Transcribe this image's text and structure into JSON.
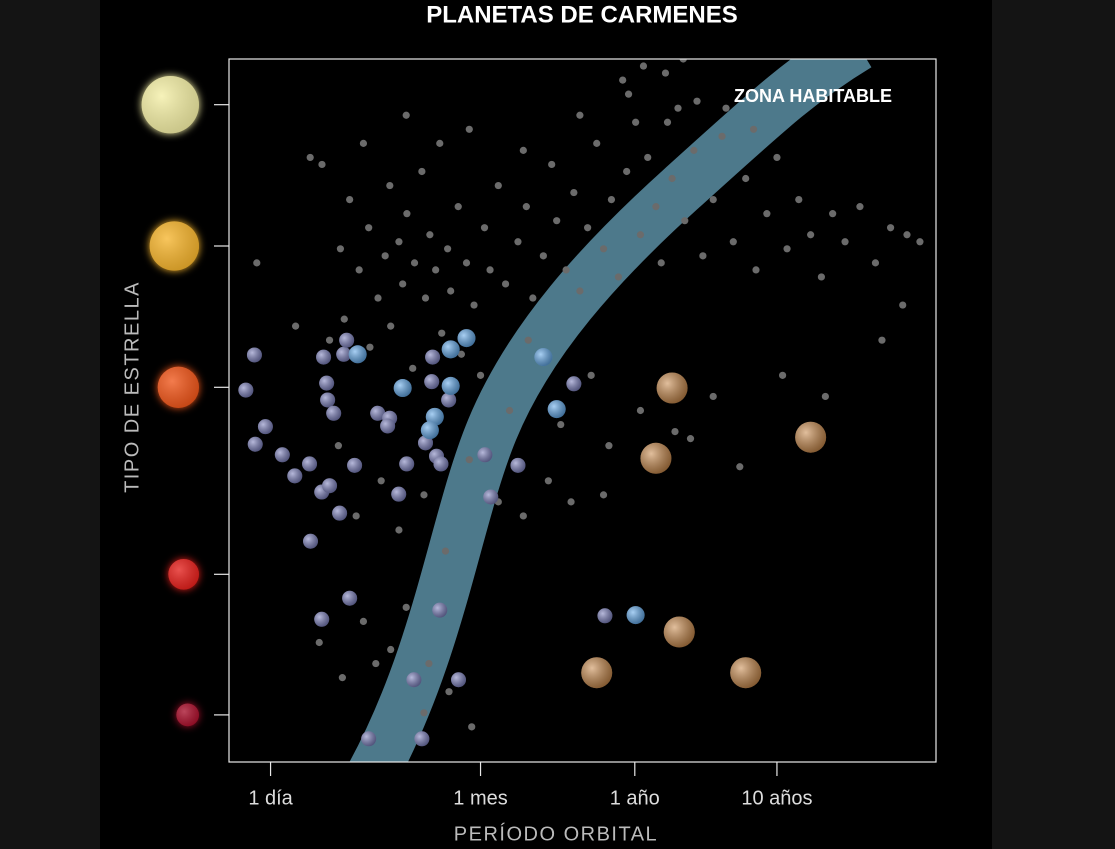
{
  "chart_data": {
    "type": "scatter",
    "title": "PLANETAS DE CARMENES",
    "xlabel": "PERÍODO ORBITAL",
    "ylabel": "TIPO DE ESTRELLA",
    "annotation": "ZONA HABITABLE",
    "xscale": "log",
    "xlim": [
      0.51,
      48000
    ],
    "xticks": [
      {
        "value": 1,
        "label": "1 día"
      },
      {
        "value": 30,
        "label": "1 mes"
      },
      {
        "value": 365,
        "label": "1 año"
      },
      {
        "value": 3650,
        "label": "10 años"
      }
    ],
    "ylim": [
      0,
      100
    ],
    "yticks": [
      93.5,
      73.4,
      53.3,
      26.7,
      6.7
    ],
    "ytick_colors": [
      "#f4efa6",
      "#f6b52e",
      "#f0561a",
      "#e4201c",
      "#a8102c"
    ],
    "series": [
      {
        "color": "#6b6b6b",
        "x": [
          3.1,
          3.6,
          4.2,
          4.9,
          5.7,
          6.4,
          6.9,
          8,
          8.5,
          9.1,
          10.3,
          11.6,
          12.3,
          13.2,
          14.5,
          15.5,
          17.6,
          18.5,
          20.9,
          23.9,
          27,
          32,
          35,
          40,
          45,
          55,
          63,
          70,
          83,
          95,
          103,
          120,
          136,
          150,
          170,
          197,
          220,
          250,
          280,
          320,
          370,
          400,
          450,
          514,
          560,
          668,
          735,
          820,
          950,
          1100,
          1300,
          1500,
          1800,
          2200,
          2600,
          3100,
          3650,
          4300,
          5200,
          6300,
          7500,
          9000,
          11000,
          14000,
          18000,
          23000,
          30000,
          37000,
          1.9,
          2.3,
          4.5,
          9,
          25,
          60,
          150,
          300,
          420,
          600,
          800,
          1000,
          1600,
          2500,
          330,
          620,
          0.8,
          1.5,
          2.6,
          3.3,
          5,
          7,
          10,
          16,
          22,
          30,
          48,
          65,
          110,
          180,
          240,
          400,
          700,
          900,
          1300,
          2000,
          4000,
          8000,
          20000,
          28000,
          3,
          4,
          6,
          8,
          12,
          17,
          25,
          40,
          60,
          90,
          130,
          220,
          4.5,
          7,
          9,
          13,
          2.2,
          3.2,
          5.5,
          12,
          18,
          26
        ],
        "values": [
          73,
          80,
          70,
          76,
          66,
          72,
          82,
          74,
          68,
          78,
          71,
          84,
          66,
          75,
          70,
          88,
          73,
          67,
          79,
          71,
          65,
          76,
          70,
          82,
          68,
          74,
          79,
          66,
          72,
          85,
          77,
          70,
          81,
          67,
          76,
          88,
          73,
          80,
          69,
          84,
          91,
          75,
          86,
          79,
          71,
          83,
          93,
          77,
          87,
          72,
          80,
          89,
          74,
          83,
          70,
          78,
          86,
          73,
          80,
          75,
          69,
          78,
          74,
          79,
          71,
          76,
          75,
          74,
          86,
          85,
          88,
          92,
          90,
          87,
          92,
          97,
          99,
          98,
          100,
          94,
          93,
          90,
          95,
          91,
          71,
          62,
          60,
          63,
          59,
          62,
          56,
          61,
          58,
          55,
          50,
          60,
          48,
          55,
          45,
          50,
          47,
          46,
          52,
          42,
          55,
          52,
          60,
          65,
          45,
          35,
          40,
          33,
          38,
          30,
          43,
          37,
          35,
          40,
          37,
          38,
          20,
          16,
          22,
          14,
          17,
          12,
          14,
          7,
          10,
          5
        ]
      },
      {
        "color": "#7c80bd",
        "x": [
          0.77,
          0.67,
          0.92,
          0.78,
          1.21,
          1.48,
          1.88,
          1.91,
          2.29,
          2.6,
          2.36,
          3.27,
          3.43,
          2.48,
          2.52,
          2.78,
          3.9,
          3.06,
          2.29,
          3.6,
          5.67,
          6.88,
          6.66,
          9.07,
          7.97,
          8.5,
          13.8,
          13.6,
          17.9,
          12.3,
          14.7,
          15.8,
          32.2,
          55,
          35.4,
          136,
          225,
          15.5,
          10.2,
          21,
          4.9,
          11.6
        ],
        "values": [
          57.9,
          52.9,
          47.7,
          45.2,
          43.7,
          40.7,
          42.4,
          31.4,
          38.4,
          39.3,
          57.6,
          58,
          60,
          53.9,
          51.5,
          49.6,
          42.2,
          35.4,
          20.3,
          23.3,
          49.6,
          48.9,
          47.8,
          42.4,
          38.1,
          53.2,
          57.6,
          54.1,
          51.5,
          45.4,
          43.5,
          42.4,
          43.7,
          42.2,
          37.7,
          53.8,
          20.8,
          21.6,
          11.7,
          11.7,
          3.3,
          3.3
        ]
      },
      {
        "color": "#62a9ea",
        "x": [
          4.1,
          18.5,
          23.9,
          8.5,
          18.5,
          14.3,
          13.2,
          83,
          103,
          370
        ],
        "values": [
          58,
          58.7,
          60.3,
          53.2,
          53.5,
          49.1,
          47.2,
          57.6,
          50.2,
          20.9
        ]
      },
      {
        "color": "#c98a4c",
        "x": [
          668,
          514,
          6300,
          750,
          197,
          2200
        ],
        "values": [
          53.2,
          43.2,
          46.2,
          18.5,
          12.7,
          12.7
        ]
      }
    ]
  }
}
